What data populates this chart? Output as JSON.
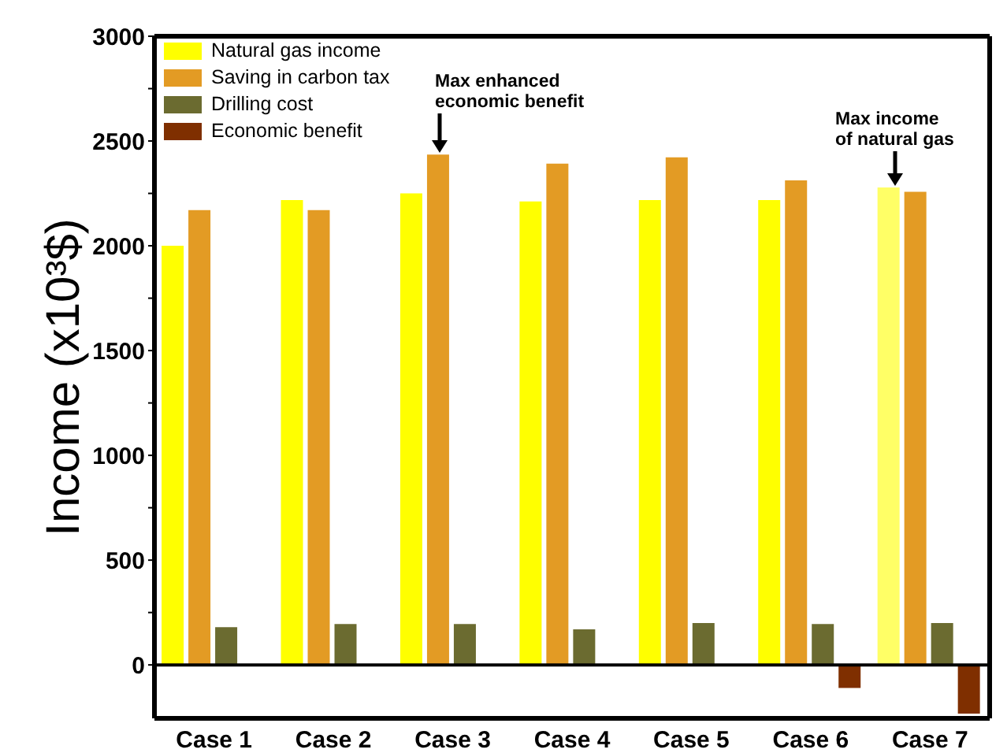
{
  "chart_data": {
    "type": "bar",
    "ylabel": "Income (x10³$)",
    "categories": [
      "Case  1",
      "Case 2",
      "Case 3",
      "Case 4",
      "Case 5",
      "Case 6",
      "Case 7"
    ],
    "series": [
      {
        "name": "Natural gas income",
        "color": "#ffff00",
        "colors": [
          "#ffff00",
          "#ffff00",
          "#ffff00",
          "#ffff00",
          "#ffff00",
          "#ffff00",
          "#ffff66"
        ],
        "values": [
          2000,
          2218,
          2250,
          2212,
          2218,
          2218,
          2278
        ]
      },
      {
        "name": "Saving in carbon tax",
        "color": "#e39b24",
        "values": [
          2170,
          2170,
          2435,
          2392,
          2422,
          2312,
          2258
        ]
      },
      {
        "name": "Drilling cost",
        "color": "#6b6b30",
        "values": [
          180,
          195,
          195,
          170,
          200,
          195,
          200
        ]
      },
      {
        "name": "Economic benefit",
        "color": "#7f2f00",
        "values": [
          null,
          null,
          null,
          null,
          null,
          -110,
          -232
        ]
      }
    ],
    "ylim": [
      -255,
      3000
    ],
    "yticks": [
      0,
      {
        "value": 250,
        "label": null
      },
      500,
      {
        "value": 750,
        "label": null
      },
      1000,
      {
        "value": 1250,
        "label": null
      },
      1500,
      {
        "value": 1750,
        "label": null
      },
      2000,
      {
        "value": 2250,
        "label": null
      },
      2500,
      {
        "value": 2750,
        "label": null
      },
      3000
    ],
    "ref_lines": [
      {
        "axis": "y",
        "value": 0,
        "color": "#000000"
      }
    ],
    "annotations": [
      "Max enhanced economic benefit",
      "Max income of natural gas"
    ],
    "legend": "top left",
    "grid": false
  }
}
